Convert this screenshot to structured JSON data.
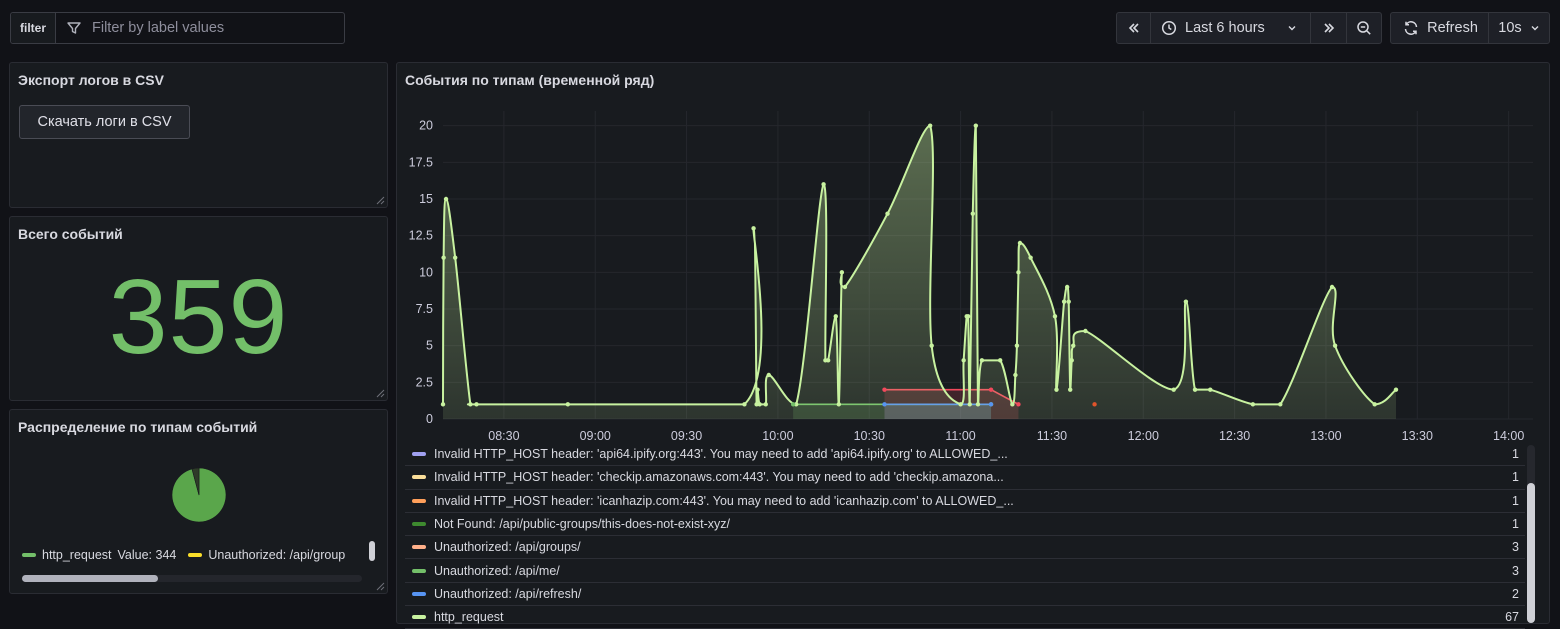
{
  "toolbar": {
    "filter_label": "filter",
    "filter_placeholder": "Filter by label values",
    "time_range": "Last 6 hours",
    "refresh_label": "Refresh",
    "refresh_interval": "10s"
  },
  "panels": {
    "export": {
      "title": "Экспорт логов в CSV",
      "button": "Скачать логи в CSV"
    },
    "total": {
      "title": "Всего событий",
      "value": "359"
    },
    "pie": {
      "title": "Распределение по типам событий",
      "legend": [
        {
          "name": "http_request",
          "value_label": "Value: 344",
          "color": "#73bf69"
        },
        {
          "name": "Unauthorized: /api/group",
          "color": "#fade2a"
        }
      ],
      "slices": [
        {
          "name": "http_request",
          "value": 344,
          "color": "#5aa64b"
        },
        {
          "name": "other",
          "value": 15,
          "color": "#2e3b28"
        }
      ]
    },
    "timeseries": {
      "title": "События по типам (временной ряд)",
      "legend": [
        {
          "name": "Invalid HTTP_HOST header: 'api64.ipify.org:443'. You may need to add 'api64.ipify.org' to ALLOWED_...",
          "value": "1",
          "color": "#a0a0f0"
        },
        {
          "name": "Invalid HTTP_HOST header: 'checkip.amazonaws.com:443'. You may need to add 'checkip.amazona...",
          "value": "1",
          "color": "#fade9a"
        },
        {
          "name": "Invalid HTTP_HOST header: 'icanhazip.com:443'. You may need to add 'icanhazip.com' to ALLOWED_...",
          "value": "1",
          "color": "#ff9f5a"
        },
        {
          "name": "Not Found: /api/public-groups/this-does-not-exist-xyz/",
          "value": "1",
          "color": "#3e8a2f"
        },
        {
          "name": "Unauthorized: /api/groups/",
          "value": "3",
          "color": "#ffb08a"
        },
        {
          "name": "Unauthorized: /api/me/",
          "value": "3",
          "color": "#73bf69"
        },
        {
          "name": "Unauthorized: /api/refresh/",
          "value": "2",
          "color": "#5794f2"
        },
        {
          "name": "http_request",
          "value": "67",
          "color": "#c8f2a0"
        }
      ]
    }
  },
  "chart_data": {
    "type": "area",
    "yticks": [
      "0",
      "2.5",
      "5",
      "7.5",
      "10",
      "12.5",
      "15",
      "17.5",
      "20"
    ],
    "xticks": [
      "08:30",
      "09:00",
      "09:30",
      "10:00",
      "10:30",
      "11:00",
      "11:30",
      "12:00",
      "12:30",
      "13:00",
      "13:30",
      "14:00"
    ],
    "ylim": [
      0,
      21
    ],
    "xlim_minutes": [
      490,
      848
    ],
    "grid": true,
    "series": [
      {
        "name": "http_request",
        "color": "#c8f2a0",
        "points": [
          [
            490,
            1
          ],
          [
            490.2,
            11
          ],
          [
            491,
            15
          ],
          [
            494,
            11
          ],
          [
            499,
            1
          ],
          [
            501,
            1
          ],
          [
            531,
            1
          ],
          [
            589,
            1
          ],
          [
            592,
            13
          ],
          [
            593,
            1
          ],
          [
            593.3,
            2
          ],
          [
            594,
            1
          ],
          [
            596,
            1
          ],
          [
            597,
            3
          ],
          [
            606,
            1
          ],
          [
            615,
            16
          ],
          [
            615.6,
            4
          ],
          [
            616.5,
            4
          ],
          [
            619,
            7
          ],
          [
            620,
            1
          ],
          [
            621,
            10
          ],
          [
            622,
            9
          ],
          [
            636,
            14
          ],
          [
            650,
            20
          ],
          [
            650.5,
            5
          ],
          [
            660,
            1
          ],
          [
            661,
            4
          ],
          [
            662,
            7
          ],
          [
            662.5,
            7
          ],
          [
            663,
            1
          ],
          [
            664,
            14
          ],
          [
            665,
            20
          ],
          [
            665.7,
            1
          ],
          [
            667,
            4
          ],
          [
            673,
            4
          ],
          [
            677,
            1
          ],
          [
            678,
            3
          ],
          [
            678.5,
            5
          ],
          [
            679,
            10
          ],
          [
            679.5,
            12
          ],
          [
            683,
            11
          ],
          [
            691,
            7
          ],
          [
            691.5,
            2
          ],
          [
            694,
            8
          ],
          [
            695,
            9
          ],
          [
            695.5,
            8
          ],
          [
            696,
            2
          ],
          [
            696.5,
            4
          ],
          [
            697,
            5
          ],
          [
            701,
            6
          ],
          [
            730,
            2
          ],
          [
            734,
            8
          ],
          [
            737,
            2
          ],
          [
            742,
            2
          ],
          [
            756,
            1
          ],
          [
            765,
            1
          ],
          [
            782,
            9
          ],
          [
            783,
            5
          ],
          [
            796,
            1
          ],
          [
            803,
            2
          ]
        ]
      },
      {
        "name": "Unauthorized: /api/groups/",
        "color": "#f2495c",
        "points": [
          [
            635,
            2
          ],
          [
            670,
            2
          ],
          [
            679,
            1
          ]
        ]
      },
      {
        "name": "Unauthorized: /api/me/",
        "color": "#73bf69",
        "points": [
          [
            605,
            1
          ],
          [
            670,
            1
          ]
        ]
      },
      {
        "name": "Unauthorized: /api/refresh/",
        "color": "#5794f2",
        "points": [
          [
            635,
            1
          ],
          [
            670,
            1
          ]
        ]
      },
      {
        "name": "Not Found: /api/public-groups/this-does-not-exist-xyz/",
        "color": "#e0542b",
        "points": [
          [
            704,
            1
          ]
        ]
      }
    ]
  }
}
